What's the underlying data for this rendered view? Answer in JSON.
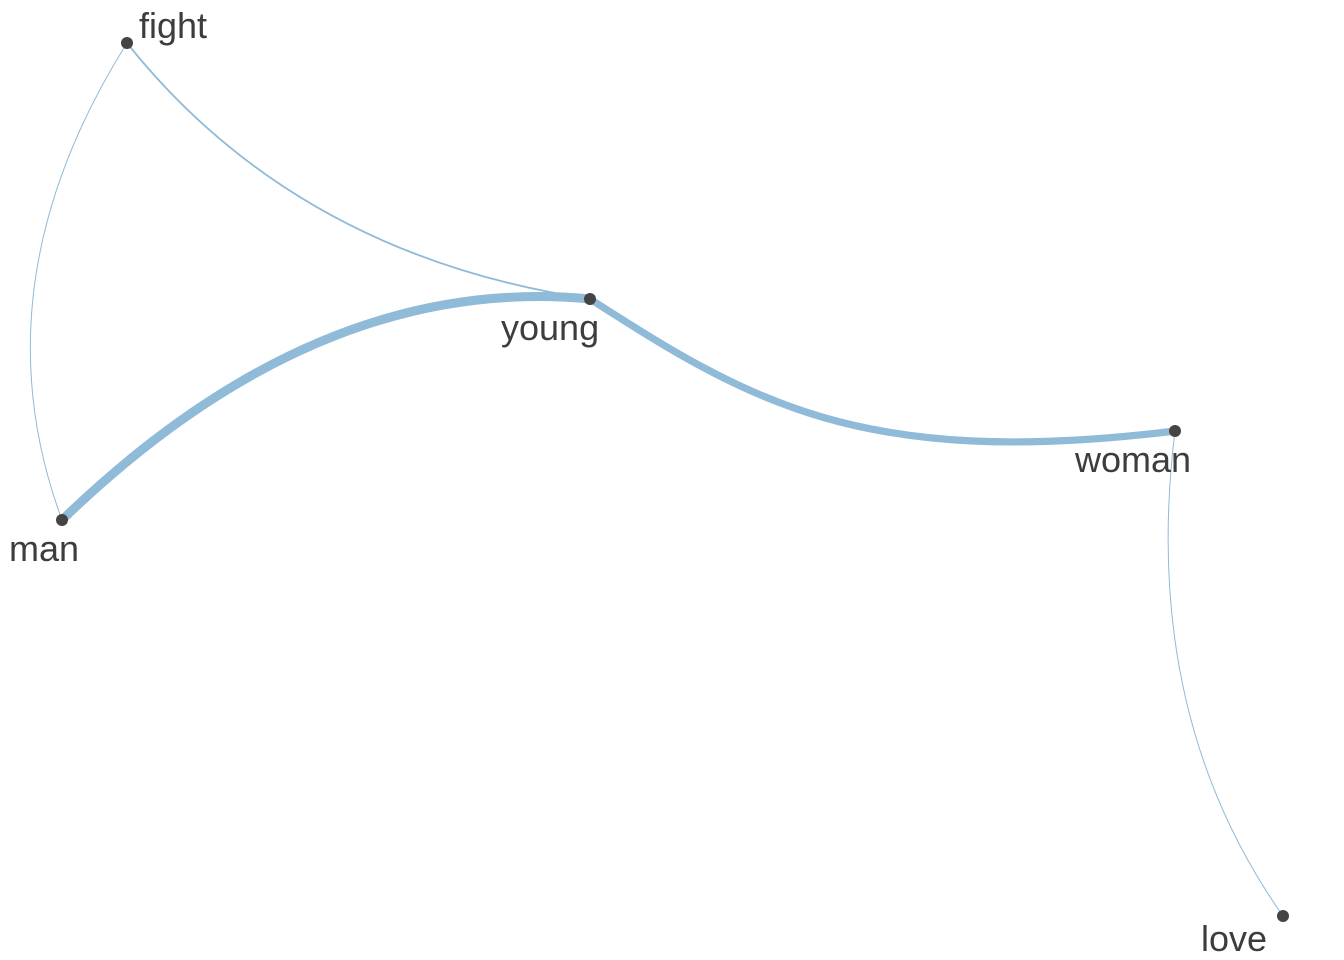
{
  "colors": {
    "edge": "#8fbad8",
    "node": "#444444",
    "label": "#3d3d3d",
    "background": "#ffffff"
  },
  "network": {
    "nodes": [
      {
        "id": "fight",
        "label": "fight"
      },
      {
        "id": "young",
        "label": "young"
      },
      {
        "id": "man",
        "label": "man"
      },
      {
        "id": "woman",
        "label": "woman"
      },
      {
        "id": "love",
        "label": "love"
      }
    ],
    "edges": [
      {
        "source": "man",
        "target": "young",
        "weight": 5
      },
      {
        "source": "young",
        "target": "woman",
        "weight": 4
      },
      {
        "source": "fight",
        "target": "young",
        "weight": 1
      },
      {
        "source": "fight",
        "target": "man",
        "weight": 0.3
      },
      {
        "source": "woman",
        "target": "love",
        "weight": 0.3
      }
    ]
  }
}
